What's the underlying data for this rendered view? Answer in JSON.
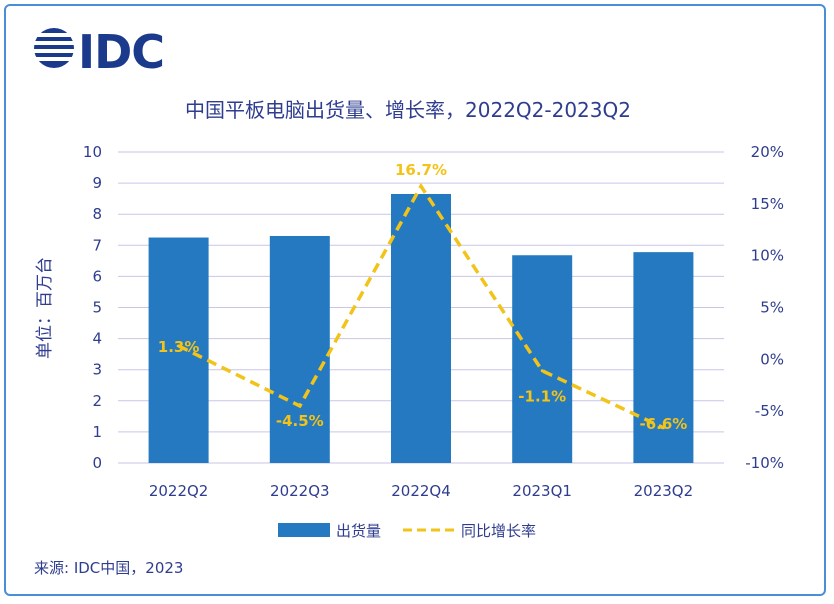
{
  "logo": {
    "text": "IDC"
  },
  "source": "来源: IDC中国，2023",
  "chart_data": {
    "type": "bar",
    "title": "中国平板电脑出货量、增长率，2022Q2-2023Q2",
    "ylabel": "单位：百万台",
    "categories": [
      "2022Q2",
      "2022Q3",
      "2022Q4",
      "2023Q1",
      "2023Q2"
    ],
    "ylim": [
      0,
      10
    ],
    "yticks": [
      "0",
      "1",
      "2",
      "3",
      "4",
      "5",
      "6",
      "7",
      "8",
      "9",
      "10"
    ],
    "y2lim": [
      -10,
      20
    ],
    "y2ticks": [
      "-10%",
      "-5%",
      "0%",
      "5%",
      "10%",
      "15%",
      "20%"
    ],
    "grid": true,
    "legend_position": "bottom",
    "series": [
      {
        "name": "出货量",
        "type": "bar",
        "color": "#2479c1",
        "values": [
          7.25,
          7.3,
          8.65,
          6.68,
          6.78
        ]
      },
      {
        "name": "同比增长率",
        "type": "line",
        "style": "dashed",
        "axis": "right",
        "color": "#f2c318",
        "values": [
          1.3,
          -4.5,
          16.7,
          -1.1,
          -6.6
        ],
        "labels": [
          "1.3%",
          "-4.5%",
          "16.7%",
          "-1.1%",
          "-6.6%"
        ]
      }
    ]
  }
}
